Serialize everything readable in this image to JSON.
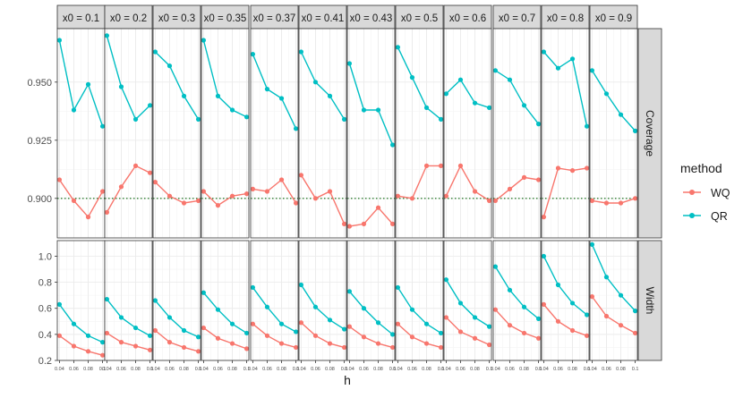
{
  "chart_data": {
    "type": "line",
    "xlabel": "h",
    "x": [
      0.04,
      0.06,
      0.08,
      0.1
    ],
    "x_tick_labels": [
      "0.04",
      "0.06",
      "0.08",
      "0.1"
    ],
    "column_facet_labels": [
      "x0 = 0.1",
      "x0 = 0.2",
      "x0 = 0.3",
      "x0 = 0.35",
      "x0 = 0.37",
      "x0 = 0.41",
      "x0 = 0.43",
      "x0 = 0.5",
      "x0 = 0.6",
      "x0 = 0.7",
      "x0 = 0.8",
      "x0 = 0.9"
    ],
    "row_facet_labels": [
      "Coverage",
      "Width"
    ],
    "legend": {
      "title": "method",
      "entries": [
        "WQ",
        "QR"
      ],
      "position": "right"
    },
    "colors": {
      "WQ": "#F8766D",
      "QR": "#00BFC4",
      "reference_line": "#2E7D32",
      "strip": "#D9D9D9",
      "panel_grid": "#EBEBEB"
    },
    "reference_line": {
      "row": "Coverage",
      "y": 0.9,
      "style": "dotted"
    },
    "rows": [
      {
        "name": "Coverage",
        "ylim": [
          0.883,
          0.973
        ],
        "y_ticks": [
          0.9,
          0.925,
          0.95
        ],
        "y_tick_labels": [
          "0.900",
          "0.925",
          "0.950"
        ],
        "panels": [
          {
            "WQ": [
              0.908,
              0.899,
              0.892,
              0.903
            ],
            "QR": [
              0.968,
              0.938,
              0.949,
              0.931
            ]
          },
          {
            "WQ": [
              0.894,
              0.905,
              0.914,
              0.911
            ],
            "QR": [
              0.97,
              0.948,
              0.934,
              0.94
            ]
          },
          {
            "WQ": [
              0.907,
              0.901,
              0.898,
              0.899
            ],
            "QR": [
              0.963,
              0.957,
              0.944,
              0.934
            ]
          },
          {
            "WQ": [
              0.903,
              0.897,
              0.901,
              0.902
            ],
            "QR": [
              0.968,
              0.944,
              0.938,
              0.935
            ]
          },
          {
            "WQ": [
              0.904,
              0.903,
              0.908,
              0.898
            ],
            "QR": [
              0.962,
              0.947,
              0.943,
              0.93
            ]
          },
          {
            "WQ": [
              0.91,
              0.9,
              0.903,
              0.889
            ],
            "QR": [
              0.963,
              0.95,
              0.944,
              0.934
            ]
          },
          {
            "WQ": [
              0.888,
              0.889,
              0.896,
              0.889
            ],
            "QR": [
              0.958,
              0.938,
              0.938,
              0.923
            ]
          },
          {
            "WQ": [
              0.901,
              0.9,
              0.914,
              0.914
            ],
            "QR": [
              0.965,
              0.952,
              0.939,
              0.934
            ]
          },
          {
            "WQ": [
              0.901,
              0.914,
              0.903,
              0.899
            ],
            "QR": [
              0.945,
              0.951,
              0.941,
              0.939
            ]
          },
          {
            "WQ": [
              0.899,
              0.904,
              0.909,
              0.908
            ],
            "QR": [
              0.955,
              0.951,
              0.94,
              0.932
            ]
          },
          {
            "WQ": [
              0.892,
              0.913,
              0.912,
              0.913
            ],
            "QR": [
              0.963,
              0.956,
              0.96,
              0.931
            ]
          },
          {
            "WQ": [
              0.899,
              0.898,
              0.898,
              0.9
            ],
            "QR": [
              0.955,
              0.945,
              0.936,
              0.929
            ]
          }
        ]
      },
      {
        "name": "Width",
        "ylim": [
          0.2,
          1.12
        ],
        "y_ticks": [
          0.2,
          0.4,
          0.6,
          0.8,
          1.0
        ],
        "y_tick_labels": [
          "0.2",
          "0.4",
          "0.6",
          "0.8",
          "1.0"
        ],
        "panels": [
          {
            "WQ": [
              0.39,
              0.31,
              0.27,
              0.24
            ],
            "QR": [
              0.63,
              0.48,
              0.39,
              0.34
            ]
          },
          {
            "WQ": [
              0.41,
              0.34,
              0.31,
              0.28
            ],
            "QR": [
              0.67,
              0.53,
              0.45,
              0.39
            ]
          },
          {
            "WQ": [
              0.43,
              0.34,
              0.3,
              0.27
            ],
            "QR": [
              0.66,
              0.53,
              0.43,
              0.38
            ]
          },
          {
            "WQ": [
              0.45,
              0.37,
              0.33,
              0.29
            ],
            "QR": [
              0.72,
              0.59,
              0.48,
              0.41
            ]
          },
          {
            "WQ": [
              0.48,
              0.39,
              0.33,
              0.3
            ],
            "QR": [
              0.76,
              0.61,
              0.48,
              0.42
            ]
          },
          {
            "WQ": [
              0.49,
              0.39,
              0.33,
              0.3
            ],
            "QR": [
              0.78,
              0.61,
              0.51,
              0.44
            ]
          },
          {
            "WQ": [
              0.46,
              0.38,
              0.33,
              0.3
            ],
            "QR": [
              0.73,
              0.6,
              0.49,
              0.4
            ]
          },
          {
            "WQ": [
              0.48,
              0.38,
              0.33,
              0.3
            ],
            "QR": [
              0.76,
              0.59,
              0.48,
              0.41
            ]
          },
          {
            "WQ": [
              0.53,
              0.42,
              0.37,
              0.32
            ],
            "QR": [
              0.82,
              0.64,
              0.53,
              0.46
            ]
          },
          {
            "WQ": [
              0.59,
              0.47,
              0.41,
              0.37
            ],
            "QR": [
              0.92,
              0.74,
              0.61,
              0.52
            ]
          },
          {
            "WQ": [
              0.63,
              0.5,
              0.43,
              0.39
            ],
            "QR": [
              1.0,
              0.78,
              0.64,
              0.55
            ]
          },
          {
            "WQ": [
              0.69,
              0.54,
              0.47,
              0.41
            ],
            "QR": [
              1.09,
              0.84,
              0.7,
              0.58
            ]
          }
        ]
      }
    ]
  }
}
